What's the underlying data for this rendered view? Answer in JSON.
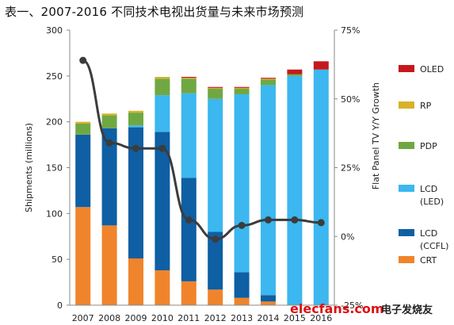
{
  "title": "表一、2007-2016 不同技术电视出货量与未来市场预测",
  "chart_data": {
    "type": "bar",
    "stacked": true,
    "categories": [
      "2007",
      "2008",
      "2009",
      "2010",
      "2011",
      "2012",
      "2013",
      "2014",
      "2015",
      "2016"
    ],
    "series": [
      {
        "name": "CRT",
        "color": "#f0842c",
        "values": [
          107,
          87,
          51,
          38,
          26,
          17,
          8,
          4,
          0,
          0
        ]
      },
      {
        "name": "LCD\n(CCFL)",
        "color": "#0e5fa3",
        "values": [
          79,
          106,
          143,
          151,
          113,
          63,
          28,
          7,
          0,
          0
        ]
      },
      {
        "name": "LCD\n(LED)",
        "color": "#3cb7ef",
        "values": [
          0,
          0,
          2,
          40,
          92,
          145,
          194,
          229,
          250,
          257
        ]
      },
      {
        "name": "PDP",
        "color": "#6fa843",
        "values": [
          12,
          14,
          14,
          18,
          16,
          11,
          6,
          6,
          2,
          0
        ]
      },
      {
        "name": "RP",
        "color": "#d8b22a",
        "values": [
          2,
          2,
          2,
          2,
          1,
          1,
          1,
          1,
          0,
          0
        ]
      },
      {
        "name": "OLED",
        "color": "#c6181c",
        "values": [
          0,
          0,
          0,
          0,
          1,
          1,
          1,
          1,
          5,
          9
        ]
      }
    ],
    "line": {
      "name": "Flat Panel TV Y/Y Growth",
      "color": "#3c3c3c",
      "values": [
        64,
        34,
        32,
        32,
        6,
        -1,
        4,
        6,
        6,
        5
      ]
    },
    "ylabel": "Shipments (millions)",
    "ylim": [
      0,
      300
    ],
    "yticks": [
      "0",
      "50",
      "100",
      "150",
      "200",
      "250",
      "300"
    ],
    "y2label": "Flat Panel TV Y/Y Growth",
    "y2lim": [
      -25,
      75
    ],
    "y2ticks": [
      "-25%",
      "0%",
      "25%",
      "50%",
      "75%"
    ],
    "grid": false,
    "legend_position": "right"
  },
  "watermark": {
    "site": "elecfans.com",
    "cn": "电子发烧友"
  }
}
